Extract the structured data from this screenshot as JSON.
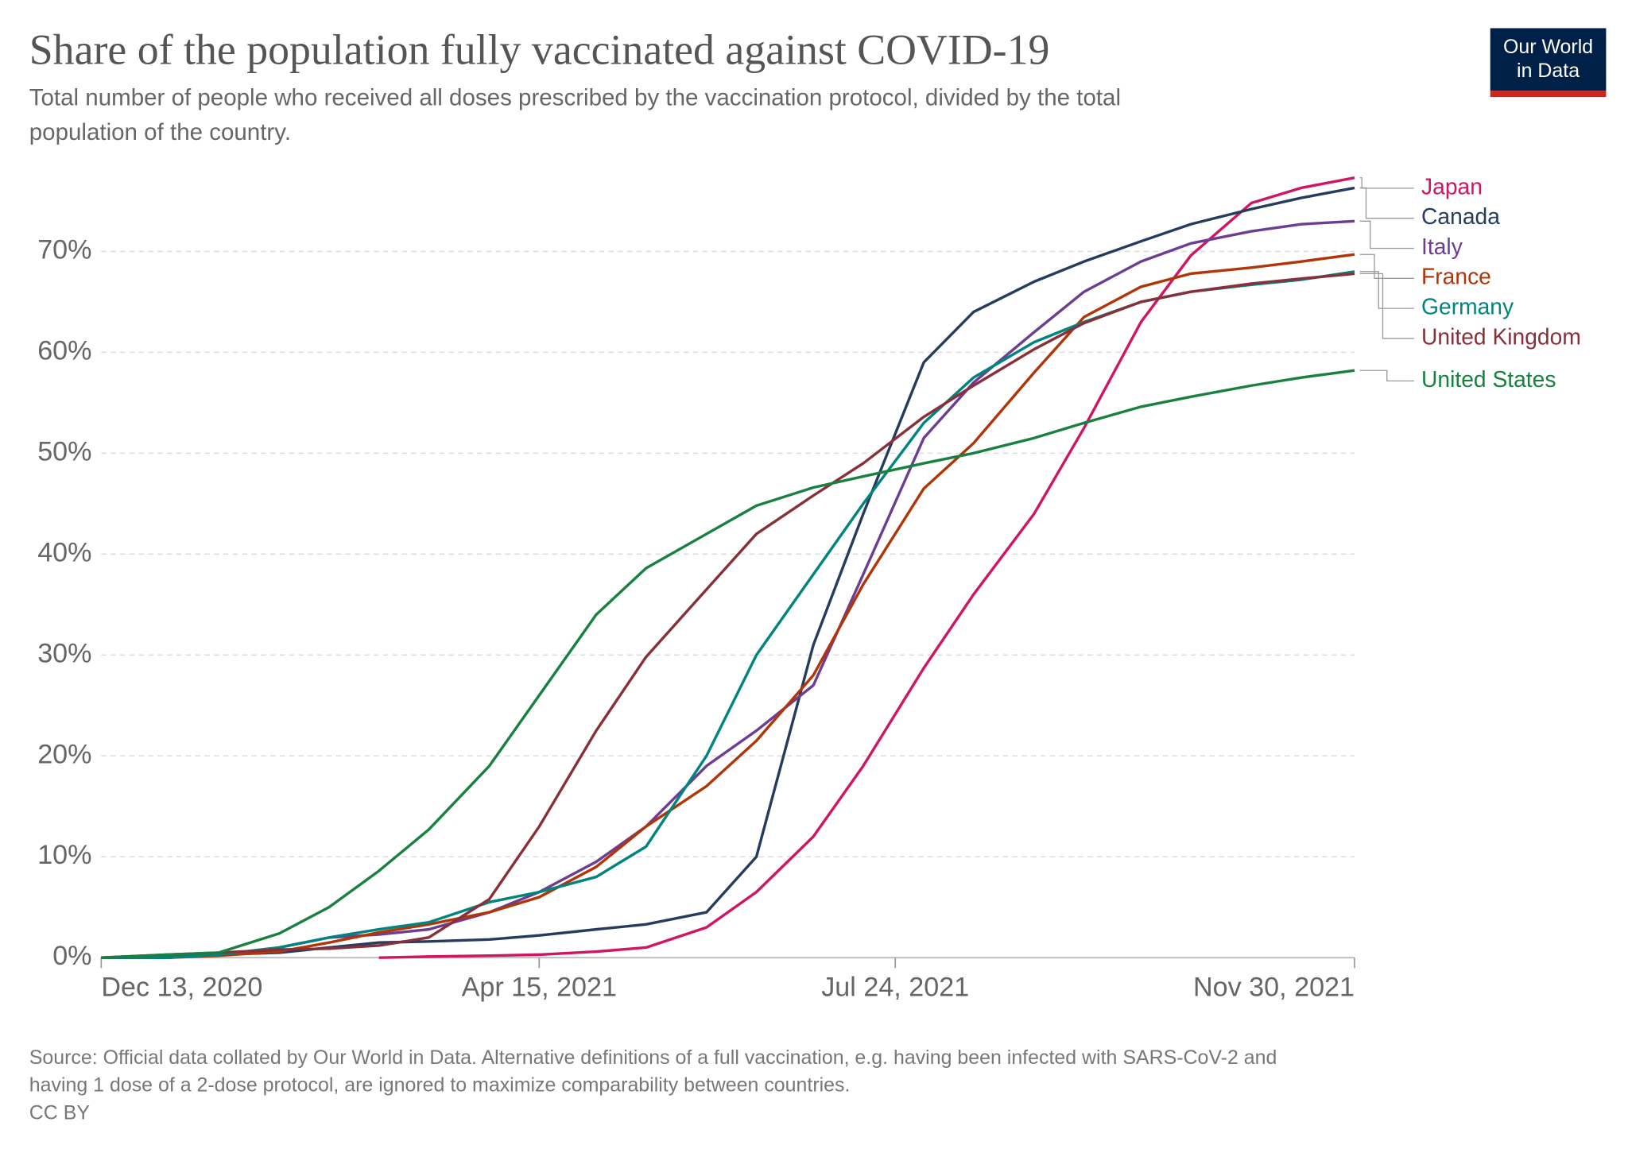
{
  "chart_data": {
    "type": "line",
    "title": "Share of the population fully vaccinated against COVID-19",
    "subtitle": [
      "Total number of people who received all doses prescribed by the vaccination protocol, divided by the total",
      "population of the country."
    ],
    "logo": [
      "Our World",
      "in Data"
    ],
    "footer": [
      "Source: Official data collated by Our World in Data. Alternative definitions of a full vaccination, e.g. having been infected with SARS-CoV-2 and",
      "having 1 dose of a 2-dose protocol, are ignored to maximize comparability between countries.",
      "CC BY"
    ],
    "x": [
      "2020-12-13",
      "2021-01-01",
      "2021-01-15",
      "2021-02-01",
      "2021-02-15",
      "2021-03-01",
      "2021-03-15",
      "2021-04-01",
      "2021-04-15",
      "2021-05-01",
      "2021-05-15",
      "2021-06-01",
      "2021-06-15",
      "2021-07-01",
      "2021-07-15",
      "2021-08-01",
      "2021-08-15",
      "2021-09-01",
      "2021-09-15",
      "2021-10-01",
      "2021-10-15",
      "2021-11-01",
      "2021-11-15",
      "2021-11-30"
    ],
    "xlim": [
      "2020-12-13",
      "2021-11-30"
    ],
    "xticks": [
      {
        "value": "2020-12-13",
        "label": "Dec 13, 2020"
      },
      {
        "value": "2021-04-15",
        "label": "Apr 15, 2021"
      },
      {
        "value": "2021-07-24",
        "label": "Jul 24, 2021"
      },
      {
        "value": "2021-11-30",
        "label": "Nov 30, 2021"
      }
    ],
    "ylim": [
      0,
      78
    ],
    "yticks": [
      {
        "value": 0,
        "label": "0%"
      },
      {
        "value": 10,
        "label": "10%"
      },
      {
        "value": 20,
        "label": "20%"
      },
      {
        "value": 30,
        "label": "30%"
      },
      {
        "value": 40,
        "label": "40%"
      },
      {
        "value": 50,
        "label": "50%"
      },
      {
        "value": 60,
        "label": "60%"
      },
      {
        "value": 70,
        "label": "70%"
      }
    ],
    "grid": true,
    "series": [
      {
        "name": "Japan",
        "color": "#d01563",
        "values": [
          null,
          null,
          null,
          null,
          null,
          0,
          0.1,
          0.2,
          0.3,
          0.6,
          1,
          3,
          6.5,
          12,
          19,
          28.7,
          36,
          44,
          52.5,
          63,
          69.6,
          74.8,
          76.3,
          77.3
        ]
      },
      {
        "name": "Canada",
        "color": "#253c5e",
        "values": [
          0,
          0.1,
          0.3,
          0.5,
          1,
          1.5,
          1.6,
          1.8,
          2.2,
          2.8,
          3.3,
          4.5,
          10,
          31,
          44,
          59,
          64,
          67,
          69,
          71,
          72.7,
          74.2,
          75.3,
          76.3
        ]
      },
      {
        "name": "Italy",
        "color": "#6c3d91",
        "values": [
          0,
          0,
          0.3,
          1,
          2,
          2.3,
          2.8,
          4.5,
          6.5,
          9.5,
          13,
          19,
          22.5,
          27,
          38,
          51.5,
          57,
          62,
          66,
          69,
          70.8,
          72,
          72.7,
          73
        ]
      },
      {
        "name": "France",
        "color": "#b13507",
        "values": [
          0,
          0,
          0.2,
          0.6,
          1.5,
          2.5,
          3.3,
          4.5,
          6,
          9,
          13,
          17,
          21.5,
          28,
          37,
          46.5,
          51,
          58,
          63.5,
          66.5,
          67.8,
          68.4,
          69,
          69.7
        ]
      },
      {
        "name": "Germany",
        "color": "#00847e",
        "values": [
          0,
          0,
          0.3,
          1,
          2,
          2.8,
          3.5,
          5.5,
          6.5,
          8,
          11,
          20,
          30,
          38,
          45,
          53,
          57.5,
          61,
          63,
          65,
          66,
          66.7,
          67.2,
          68
        ]
      },
      {
        "name": "United Kingdom",
        "color": "#883039",
        "values": [
          0,
          0.3,
          0.5,
          0.8,
          0.9,
          1.2,
          2,
          5.8,
          13,
          22.5,
          29.8,
          36.5,
          42,
          45.8,
          49,
          53.6,
          56.7,
          60.3,
          62.9,
          65,
          66,
          66.8,
          67.3,
          67.8
        ]
      },
      {
        "name": "United States",
        "color": "#18813f",
        "values": [
          0,
          0.3,
          0.5,
          2.4,
          5,
          8.6,
          12.7,
          19,
          26,
          34,
          38.6,
          42,
          44.8,
          46.6,
          47.7,
          49,
          50,
          51.5,
          53,
          54.6,
          55.6,
          56.7,
          57.5,
          58.2
        ]
      }
    ]
  }
}
